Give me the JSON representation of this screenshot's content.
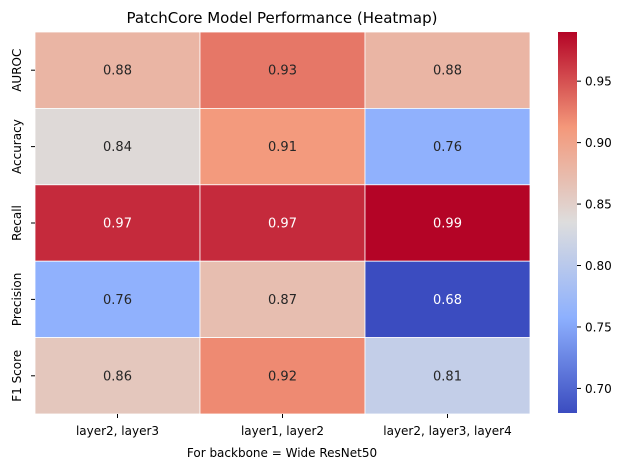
{
  "chart_data": {
    "type": "heatmap",
    "title": "PatchCore Model Performance (Heatmap)",
    "xlabel": "For backbone = Wide ResNet50",
    "ylabel": "",
    "columns": [
      "layer2, layer3",
      "layer1, layer2",
      "layer2, layer3, layer4"
    ],
    "rows": [
      "AUROC",
      "Accuracy",
      "Recall",
      "Precision",
      "F1 Score"
    ],
    "values": [
      [
        0.88,
        0.93,
        0.88
      ],
      [
        0.84,
        0.91,
        0.76
      ],
      [
        0.97,
        0.97,
        0.99
      ],
      [
        0.76,
        0.87,
        0.68
      ],
      [
        0.86,
        0.92,
        0.81
      ]
    ],
    "colorbar": {
      "colormap": "coolwarm",
      "min": 0.68,
      "max": 0.99,
      "ticks": [
        0.7,
        0.75,
        0.8,
        0.85,
        0.9,
        0.95
      ],
      "tick_labels": [
        "0.70",
        "0.75",
        "0.80",
        "0.85",
        "0.90",
        "0.95"
      ]
    },
    "annotation_format": "0.00"
  }
}
